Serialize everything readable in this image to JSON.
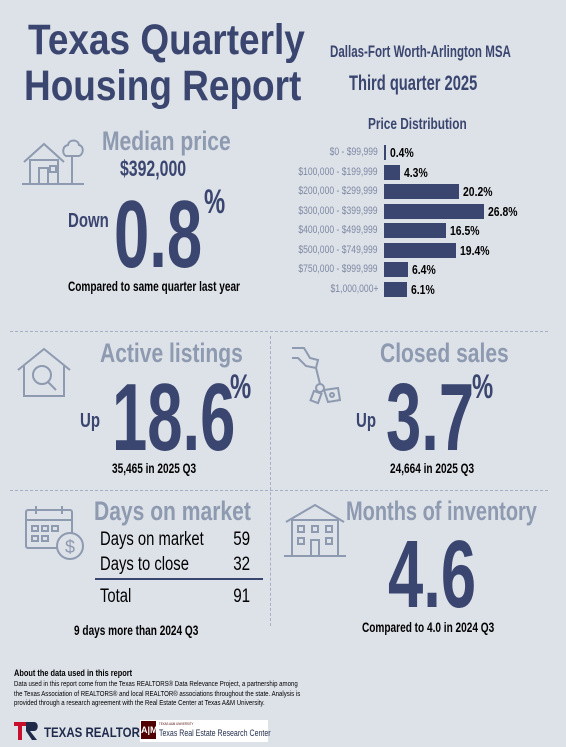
{
  "header": {
    "title_line1": "Texas Quarterly",
    "title_line2": "Housing Report",
    "msa": "Dallas-Fort Worth-Arlington MSA",
    "quarter": "Third quarter 2025"
  },
  "median_price": {
    "title": "Median price",
    "price": "$392,000",
    "direction": "Down",
    "value": "0.8",
    "unit": "%",
    "note": "Compared to same quarter last year"
  },
  "price_distribution": {
    "title": "Price Distribution",
    "rows": [
      {
        "label": "$0 - $99,999",
        "value": 0.4,
        "text": "0.4%"
      },
      {
        "label": "$100,000 - $199,999",
        "value": 4.3,
        "text": "4.3%"
      },
      {
        "label": "$200,000 - $299,999",
        "value": 20.2,
        "text": "20.2%"
      },
      {
        "label": "$300,000 - $399,999",
        "value": 26.8,
        "text": "26.8%"
      },
      {
        "label": "$400,000 - $499,999",
        "value": 16.5,
        "text": "16.5%"
      },
      {
        "label": "$500,000 - $749,999",
        "value": 19.4,
        "text": "19.4%"
      },
      {
        "label": "$750,000 - $999,999",
        "value": 6.4,
        "text": "6.4%"
      },
      {
        "label": "$1,000,000+",
        "value": 6.1,
        "text": "6.1%"
      }
    ]
  },
  "active_listings": {
    "title": "Active listings",
    "direction": "Up",
    "value": "18.6",
    "unit": "%",
    "note": "35,465 in 2025 Q3"
  },
  "closed_sales": {
    "title": "Closed sales",
    "direction": "Up",
    "value": "3.7",
    "unit": "%",
    "note": "24,664 in 2025 Q3"
  },
  "days_on_market": {
    "title": "Days on market",
    "rows": [
      {
        "label": "Days on market",
        "value": "59"
      },
      {
        "label": "Days to close",
        "value": "32"
      }
    ],
    "total_label": "Total",
    "total_value": "91",
    "note": "9 days more than 2024 Q3"
  },
  "months_inventory": {
    "title": "Months of inventory",
    "value": "4.6",
    "note": "Compared to 4.0 in 2024 Q3"
  },
  "footer": {
    "about_title": "About the data used in this report",
    "about_text": "Data used in this report come from the Texas REALTORS® Data Relevance Project, a partnership among the Texas Association of REALTORS® and local REALTOR® associations throughout the state. Analysis is provided through a research agreement with the Real Estate Center at Texas A&M University.",
    "logo1": "TEXAS REALTORS",
    "logo2_small": "TEXAS A&M UNIVERSITY",
    "logo2": "Texas Real Estate Research Center"
  },
  "colors": {
    "navy": "#3a466f",
    "muted": "#8d9ab0",
    "background": "#dde1e8",
    "logo_red": "#c8102e"
  }
}
